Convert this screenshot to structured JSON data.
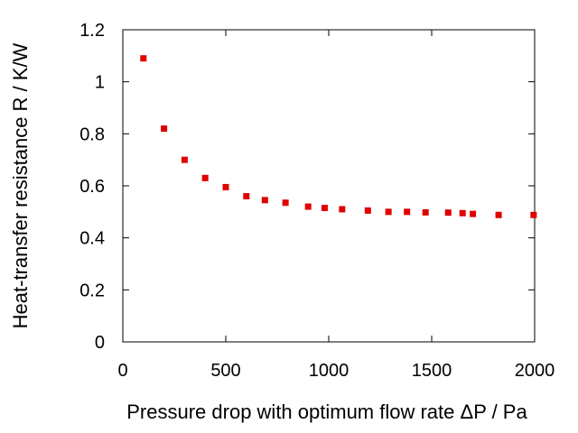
{
  "chart_data": {
    "type": "scatter",
    "xlabel": "Pressure drop with optimum flow rate ΔP / Pa",
    "ylabel": "Heat-transfer resistance R / K/W",
    "xlim": [
      0,
      2000
    ],
    "ylim": [
      0,
      1.2
    ],
    "x_ticks": [
      0,
      500,
      1000,
      1500,
      2000
    ],
    "y_ticks": [
      0,
      0.2,
      0.4,
      0.6,
      0.8,
      1,
      1.2
    ],
    "x_tick_labels": [
      "0",
      "500",
      "1000",
      "1500",
      "2000"
    ],
    "y_tick_labels": [
      "0",
      "0.2",
      "0.4",
      "0.6",
      "0.8",
      "1",
      "1.2"
    ],
    "grid": false,
    "marker": "square",
    "marker_color": "#e00000",
    "series": [
      {
        "points": [
          [
            100,
            1.09
          ],
          [
            200,
            0.82
          ],
          [
            300,
            0.7
          ],
          [
            400,
            0.63
          ],
          [
            500,
            0.595
          ],
          [
            600,
            0.56
          ],
          [
            690,
            0.545
          ],
          [
            790,
            0.535
          ],
          [
            900,
            0.52
          ],
          [
            980,
            0.515
          ],
          [
            1065,
            0.51
          ],
          [
            1190,
            0.505
          ],
          [
            1290,
            0.5
          ],
          [
            1380,
            0.5
          ],
          [
            1470,
            0.498
          ],
          [
            1580,
            0.497
          ],
          [
            1650,
            0.495
          ],
          [
            1700,
            0.492
          ],
          [
            1825,
            0.488
          ],
          [
            1995,
            0.488
          ]
        ]
      }
    ]
  }
}
